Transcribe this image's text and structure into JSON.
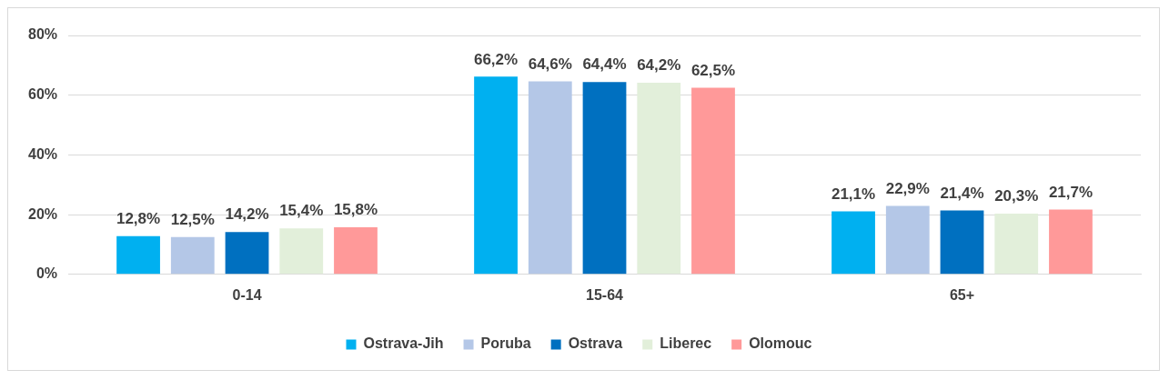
{
  "chart_data": {
    "type": "bar",
    "categories": [
      "0-14",
      "15-64",
      "65+"
    ],
    "ylim": [
      0,
      80
    ],
    "yticks": [
      {
        "value": 0,
        "label": "0%"
      },
      {
        "value": 20,
        "label": "20%"
      },
      {
        "value": 40,
        "label": "40%"
      },
      {
        "value": 60,
        "label": "60%"
      },
      {
        "value": 80,
        "label": "80%"
      }
    ],
    "grid": "y",
    "legend": "bottom",
    "series": [
      {
        "name": "Ostrava-Jih",
        "color": "#00b0f0",
        "values": [
          12.8,
          66.2,
          21.1
        ],
        "value_labels": [
          "12,8%",
          "66,2%",
          "21,1%"
        ]
      },
      {
        "name": "Poruba",
        "color": "#b4c7e7",
        "values": [
          12.5,
          64.6,
          22.9
        ],
        "value_labels": [
          "12,5%",
          "64,6%",
          "22,9%"
        ]
      },
      {
        "name": "Ostrava",
        "color": "#0070c0",
        "values": [
          14.2,
          64.4,
          21.4
        ],
        "value_labels": [
          "14,2%",
          "64,4%",
          "21,4%"
        ]
      },
      {
        "name": "Liberec",
        "color": "#e2efda",
        "values": [
          15.4,
          64.2,
          20.3
        ],
        "value_labels": [
          "15,4%",
          "64,2%",
          "20,3%"
        ]
      },
      {
        "name": "Olomouc",
        "color": "#ff9999",
        "values": [
          15.8,
          62.5,
          21.7
        ],
        "value_labels": [
          "15,8%",
          "62,5%",
          "21,7%"
        ]
      }
    ]
  }
}
